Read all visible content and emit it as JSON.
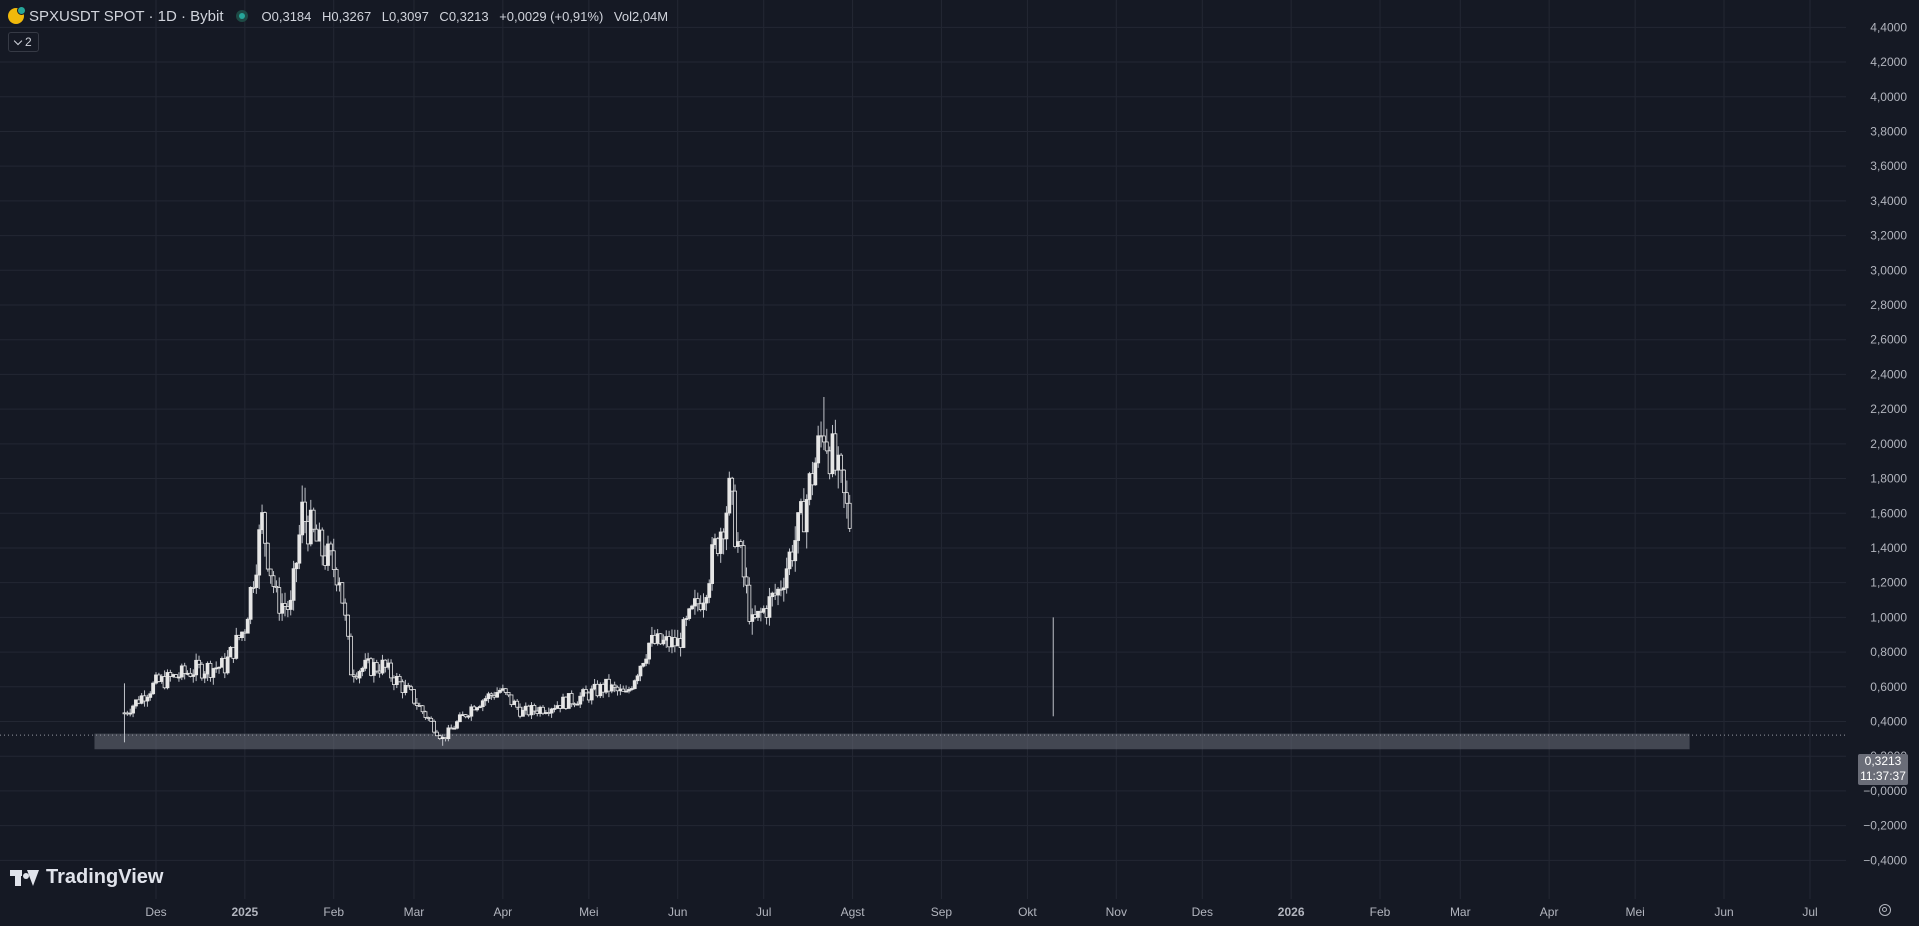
{
  "header": {
    "symbol_title": "SPXUSDT SPOT · 1D · Bybit",
    "ohlc": [
      {
        "key": "O",
        "value": "0,3184"
      },
      {
        "key": "H",
        "value": "0,3267"
      },
      {
        "key": "L",
        "value": "0,3097"
      },
      {
        "key": "C",
        "value": "0,3213"
      },
      {
        "key": "",
        "value": "+0,0029 (+0,91%)"
      },
      {
        "key": "Vol",
        "value": "2,04M"
      }
    ],
    "indicators_badge": "2"
  },
  "logo_text": "TradingView",
  "price_badge": {
    "price": "0,3213",
    "countdown": "11:37:37"
  },
  "colors": {
    "background": "#151924",
    "grid": "#232733",
    "candle": "#e6e6e6",
    "zone": "#6a6d78",
    "text": "#d1d4dc",
    "badge": "#6a6d78"
  },
  "icons": {
    "symbol": "spx-coin-icon",
    "status": "market-open-dot-icon",
    "collapse": "chevron-down-icon",
    "settings": "settings-icon"
  },
  "chart_data": {
    "type": "candlestick",
    "title": "SPXUSDT SPOT · 1D · Bybit",
    "x_ticks": [
      "Des",
      "2025",
      "Feb",
      "Mar",
      "Apr",
      "Mei",
      "Jun",
      "Jul",
      "Agst",
      "Sep",
      "Okt",
      "Nov",
      "Des",
      "2026",
      "Feb",
      "Mar",
      "Apr",
      "Mei",
      "Jun",
      "Jul"
    ],
    "y_ticks": [
      "4,4000",
      "4,2000",
      "4,0000",
      "3,8000",
      "3,6000",
      "3,4000",
      "3,2000",
      "3,0000",
      "2,8000",
      "2,6000",
      "2,4000",
      "2,2000",
      "2,0000",
      "1,8000",
      "1,6000",
      "1,4000",
      "1,2000",
      "1,0000",
      "0,8000",
      "0,6000",
      "0,4000",
      "0,2000",
      "−0,0000",
      "−0,2000",
      "−0,4000"
    ],
    "y_values": [
      4.4,
      4.2,
      4.0,
      3.8,
      3.6,
      3.4,
      3.2,
      3.0,
      2.8,
      2.6,
      2.4,
      2.2,
      2.0,
      1.8,
      1.6,
      1.4,
      1.2,
      1.0,
      0.8,
      0.6,
      0.4,
      0.2,
      0.0,
      -0.2,
      -0.4
    ],
    "ylim": [
      -0.45,
      4.5
    ],
    "start_date": "2024-11-20",
    "end_date": "2025-07-31",
    "x_ticks_dates": [
      "2024-12-01",
      "2025-01-01",
      "2025-02-01",
      "2025-03-01",
      "2025-04-01",
      "2025-05-01",
      "2025-06-01",
      "2025-07-01",
      "2025-08-01",
      "2025-09-01",
      "2025-10-01",
      "2025-11-01",
      "2025-12-01",
      "2026-01-01",
      "2026-02-01",
      "2026-03-01",
      "2026-04-01",
      "2026-05-01",
      "2026-06-01",
      "2026-07-01"
    ],
    "last_price": 0.3213,
    "zone": {
      "from_date": "2024-11-20",
      "to_date": "2026-05-20",
      "low": 0.24,
      "high": 0.33
    },
    "series": [
      {
        "x": "2024-11-20",
        "y": 0.45,
        "low": 0.28,
        "high": 0.62
      },
      {
        "x": "2024-12-01",
        "y": 0.62
      },
      {
        "x": "2024-12-15",
        "y": 0.7
      },
      {
        "x": "2024-12-25",
        "y": 0.72
      },
      {
        "x": "2025-01-01",
        "y": 0.95
      },
      {
        "x": "2025-01-07",
        "y": 1.55,
        "high": 1.65
      },
      {
        "x": "2025-01-12",
        "y": 1.1
      },
      {
        "x": "2025-01-17",
        "y": 1.05
      },
      {
        "x": "2025-01-21",
        "y": 1.6,
        "high": 1.76
      },
      {
        "x": "2025-01-27",
        "y": 1.4
      },
      {
        "x": "2025-02-03",
        "y": 1.25
      },
      {
        "x": "2025-02-07",
        "y": 0.7
      },
      {
        "x": "2025-02-18",
        "y": 0.72
      },
      {
        "x": "2025-02-28",
        "y": 0.55
      },
      {
        "x": "2025-03-11",
        "y": 0.3,
        "low": 0.26
      },
      {
        "x": "2025-03-22",
        "y": 0.5
      },
      {
        "x": "2025-03-31",
        "y": 0.58
      },
      {
        "x": "2025-04-08",
        "y": 0.45
      },
      {
        "x": "2025-04-20",
        "y": 0.5
      },
      {
        "x": "2025-04-30",
        "y": 0.55
      },
      {
        "x": "2025-05-07",
        "y": 0.6
      },
      {
        "x": "2025-05-14",
        "y": 0.55
      },
      {
        "x": "2025-05-22",
        "y": 0.85
      },
      {
        "x": "2025-06-01",
        "y": 0.85
      },
      {
        "x": "2025-06-10",
        "y": 1.15
      },
      {
        "x": "2025-06-19",
        "y": 1.7,
        "high": 1.84
      },
      {
        "x": "2025-06-27",
        "y": 0.95,
        "low": 0.9
      },
      {
        "x": "2025-07-06",
        "y": 1.15
      },
      {
        "x": "2025-07-14",
        "y": 1.55
      },
      {
        "x": "2025-07-22",
        "y": 2.1,
        "high": 2.27
      },
      {
        "x": "2025-07-31",
        "y": 1.55
      }
    ]
  }
}
